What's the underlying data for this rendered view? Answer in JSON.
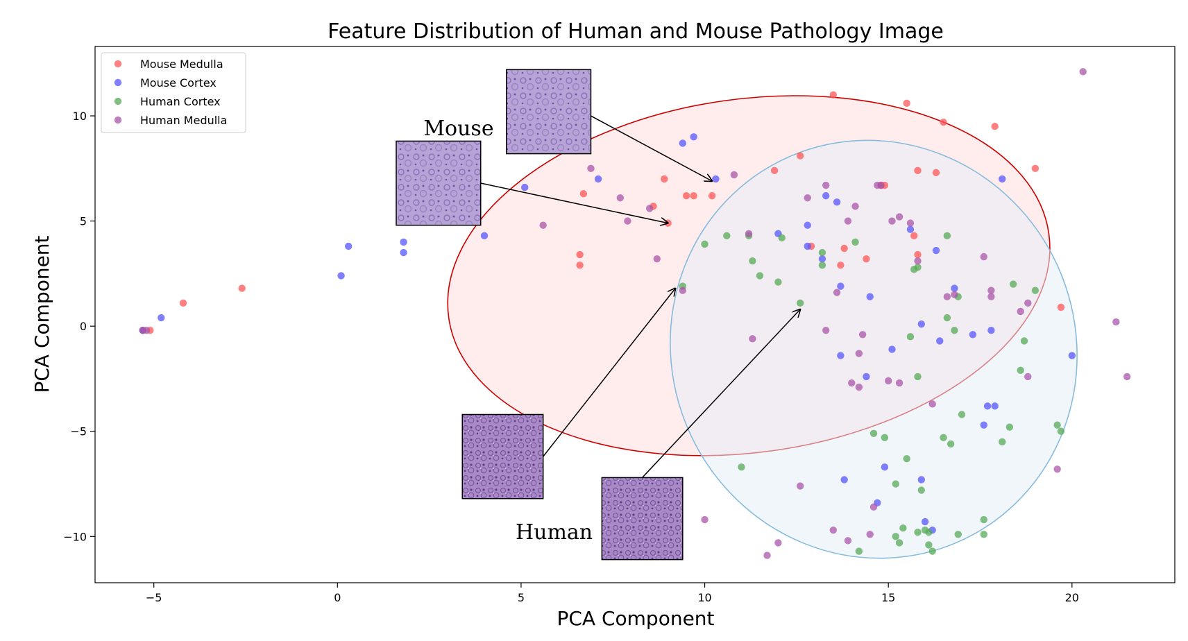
{
  "chart_data": {
    "type": "scatter",
    "title": "Feature Distribution of Human and Mouse Pathology Image",
    "xlabel": "PCA Component",
    "ylabel": "PCA Component",
    "xlim": [
      -6.6,
      22.8
    ],
    "ylim": [
      -12.2,
      13.3
    ],
    "xticks": [
      -5,
      0,
      5,
      10,
      15,
      20
    ],
    "yticks": [
      -10,
      -5,
      0,
      5,
      10
    ],
    "xtick_labels": [
      "−5",
      "0",
      "5",
      "10",
      "15",
      "20"
    ],
    "ytick_labels": [
      "−10",
      "−5",
      "0",
      "5",
      "10"
    ],
    "grid": false,
    "legend_position": "top-left",
    "series": [
      {
        "name": "Mouse Medulla",
        "color": "#ff5555",
        "points": [
          [
            -5.3,
            -0.2
          ],
          [
            -5.1,
            -0.2
          ],
          [
            -4.2,
            1.1
          ],
          [
            -2.6,
            1.8
          ],
          [
            6.6,
            3.4
          ],
          [
            6.6,
            2.9
          ],
          [
            6.7,
            6.3
          ],
          [
            8.6,
            5.7
          ],
          [
            8.9,
            7.0
          ],
          [
            9.0,
            4.9
          ],
          [
            9.5,
            6.2
          ],
          [
            9.7,
            6.2
          ],
          [
            10.2,
            6.2
          ],
          [
            11.9,
            7.4
          ],
          [
            12.6,
            8.1
          ],
          [
            12.9,
            3.8
          ],
          [
            13.5,
            11.0
          ],
          [
            13.7,
            2.9
          ],
          [
            13.8,
            3.7
          ],
          [
            14.4,
            3.2
          ],
          [
            14.8,
            6.7
          ],
          [
            14.9,
            6.7
          ],
          [
            15.5,
            10.6
          ],
          [
            15.7,
            4.3
          ],
          [
            15.8,
            3.4
          ],
          [
            15.8,
            7.4
          ],
          [
            16.3,
            7.3
          ],
          [
            16.5,
            9.7
          ],
          [
            17.9,
            9.5
          ],
          [
            19.0,
            7.5
          ],
          [
            19.7,
            0.9
          ]
        ]
      },
      {
        "name": "Mouse Cortex",
        "color": "#5555ff",
        "points": [
          [
            -5.3,
            -0.2
          ],
          [
            -4.8,
            0.4
          ],
          [
            0.1,
            2.4
          ],
          [
            0.3,
            3.8
          ],
          [
            1.8,
            4.0
          ],
          [
            1.8,
            3.5
          ],
          [
            4.0,
            4.3
          ],
          [
            5.1,
            6.6
          ],
          [
            7.1,
            7.0
          ],
          [
            9.4,
            8.7
          ],
          [
            9.7,
            9.0
          ],
          [
            10.3,
            7.0
          ],
          [
            12.0,
            4.4
          ],
          [
            12.8,
            4.8
          ],
          [
            12.8,
            3.8
          ],
          [
            13.2,
            3.2
          ],
          [
            13.3,
            6.2
          ],
          [
            13.6,
            5.9
          ],
          [
            13.7,
            1.9
          ],
          [
            13.7,
            -1.4
          ],
          [
            14.5,
            1.4
          ],
          [
            14.4,
            -2.4
          ],
          [
            14.9,
            -6.7
          ],
          [
            14.7,
            -8.4
          ],
          [
            15.1,
            -1.1
          ],
          [
            15.6,
            4.6
          ],
          [
            15.9,
            0.1
          ],
          [
            15.9,
            -7.3
          ],
          [
            16.0,
            -9.3
          ],
          [
            16.2,
            -9.7
          ],
          [
            16.3,
            3.6
          ],
          [
            16.4,
            -0.7
          ],
          [
            16.8,
            1.8
          ],
          [
            17.3,
            -0.4
          ],
          [
            17.6,
            -4.7
          ],
          [
            17.7,
            -3.8
          ],
          [
            17.8,
            -0.2
          ],
          [
            17.9,
            -3.8
          ],
          [
            18.1,
            7.0
          ],
          [
            20.0,
            -1.4
          ],
          [
            13.8,
            -7.3
          ]
        ]
      },
      {
        "name": "Human Cortex",
        "color": "#55aa55",
        "points": [
          [
            9.4,
            1.9
          ],
          [
            10.0,
            3.9
          ],
          [
            10.6,
            4.3
          ],
          [
            11.2,
            4.3
          ],
          [
            11.3,
            3.1
          ],
          [
            11.5,
            2.4
          ],
          [
            12.0,
            2.1
          ],
          [
            12.1,
            4.2
          ],
          [
            12.6,
            1.1
          ],
          [
            13.2,
            3.5
          ],
          [
            13.2,
            2.9
          ],
          [
            14.1,
            4.0
          ],
          [
            14.6,
            -5.1
          ],
          [
            14.9,
            -5.3
          ],
          [
            15.2,
            -7.5
          ],
          [
            15.5,
            -6.3
          ],
          [
            15.6,
            -0.5
          ],
          [
            15.7,
            2.7
          ],
          [
            15.8,
            2.8
          ],
          [
            15.8,
            -2.4
          ],
          [
            15.9,
            -7.8
          ],
          [
            16.6,
            0.4
          ],
          [
            16.6,
            4.3
          ],
          [
            16.7,
            -5.6
          ],
          [
            16.8,
            -0.2
          ],
          [
            16.9,
            1.4
          ],
          [
            17.0,
            -4.2
          ],
          [
            17.6,
            -9.2
          ],
          [
            18.1,
            -5.5
          ],
          [
            18.3,
            -4.8
          ],
          [
            18.4,
            2.0
          ],
          [
            18.6,
            -2.1
          ],
          [
            18.7,
            -0.7
          ],
          [
            19.0,
            1.7
          ],
          [
            19.6,
            -4.7
          ],
          [
            19.7,
            -5.0
          ],
          [
            15.2,
            -10.0
          ],
          [
            15.4,
            -9.6
          ],
          [
            15.8,
            -9.8
          ],
          [
            16.0,
            -9.7
          ],
          [
            16.1,
            -9.8
          ],
          [
            16.1,
            -10.4
          ],
          [
            16.2,
            -10.7
          ],
          [
            16.9,
            -9.9
          ],
          [
            17.6,
            -9.9
          ],
          [
            14.2,
            -10.7
          ],
          [
            15.3,
            -10.3
          ],
          [
            16.5,
            -5.3
          ],
          [
            11.0,
            -6.7
          ]
        ]
      },
      {
        "name": "Human Medulla",
        "color": "#aa55aa",
        "points": [
          [
            -5.3,
            -0.2
          ],
          [
            -5.2,
            -0.2
          ],
          [
            5.6,
            4.8
          ],
          [
            6.9,
            7.5
          ],
          [
            7.7,
            6.1
          ],
          [
            7.9,
            5.0
          ],
          [
            8.5,
            5.6
          ],
          [
            8.7,
            3.2
          ],
          [
            9.4,
            1.7
          ],
          [
            10.8,
            7.2
          ],
          [
            11.2,
            4.4
          ],
          [
            11.3,
            -0.6
          ],
          [
            12.8,
            6.1
          ],
          [
            13.3,
            6.7
          ],
          [
            13.6,
            1.6
          ],
          [
            13.3,
            -0.2
          ],
          [
            13.9,
            5.0
          ],
          [
            14.1,
            5.7
          ],
          [
            14.2,
            -1.3
          ],
          [
            14.0,
            -2.7
          ],
          [
            14.2,
            -2.9
          ],
          [
            14.3,
            -0.4
          ],
          [
            14.7,
            6.7
          ],
          [
            14.8,
            6.7
          ],
          [
            15.1,
            5.0
          ],
          [
            15.3,
            5.2
          ],
          [
            15.0,
            -2.6
          ],
          [
            15.3,
            -2.7
          ],
          [
            15.6,
            4.9
          ],
          [
            15.8,
            3.1
          ],
          [
            16.2,
            -3.7
          ],
          [
            16.6,
            1.4
          ],
          [
            16.8,
            1.5
          ],
          [
            17.6,
            3.3
          ],
          [
            17.8,
            1.7
          ],
          [
            17.8,
            1.4
          ],
          [
            18.6,
            0.7
          ],
          [
            18.8,
            1.1
          ],
          [
            18.8,
            -2.4
          ],
          [
            19.6,
            -6.8
          ],
          [
            20.3,
            12.1
          ],
          [
            21.2,
            0.2
          ],
          [
            21.5,
            -2.4
          ],
          [
            12.6,
            -7.6
          ],
          [
            14.6,
            -8.6
          ],
          [
            10.0,
            -9.2
          ],
          [
            11.7,
            -10.9
          ],
          [
            12.0,
            -10.3
          ],
          [
            13.5,
            -9.7
          ],
          [
            13.9,
            -10.2
          ],
          [
            14.5,
            -9.9
          ]
        ]
      }
    ],
    "regions": [
      {
        "name": "mouse-region",
        "center": [
          11.2,
          2.4
        ],
        "width": 16.5,
        "height": 16.8,
        "angle": 8,
        "fill": "#ffdddd",
        "edge": "#cc0000"
      },
      {
        "name": "human-region",
        "center": [
          14.6,
          -1.1
        ],
        "width": 11.0,
        "height": 20.0,
        "angle": 24,
        "fill": "#e6eef7",
        "edge": "#88bbdd"
      }
    ],
    "annotations": [
      {
        "text": "Mouse",
        "x": 3.3,
        "y": 9.4
      },
      {
        "text": "Human",
        "x": 5.9,
        "y": -9.8
      }
    ],
    "inset_arrows": [
      {
        "patch": [
          4.6,
          8.2,
          6.9,
          12.2
        ],
        "from": [
          6.9,
          10.0
        ],
        "to": [
          10.2,
          6.9
        ],
        "tone": "mouse"
      },
      {
        "patch": [
          1.6,
          4.8,
          3.9,
          8.8
        ],
        "from": [
          3.9,
          6.8
        ],
        "to": [
          9.0,
          4.9
        ],
        "tone": "mouse"
      },
      {
        "patch": [
          3.4,
          -8.2,
          5.6,
          -4.2
        ],
        "from": [
          5.6,
          -6.2
        ],
        "to": [
          9.2,
          1.8
        ],
        "tone": "human"
      },
      {
        "patch": [
          7.2,
          -11.1,
          9.4,
          -7.2
        ],
        "from": [
          8.3,
          -7.2
        ],
        "to": [
          12.6,
          0.8
        ],
        "tone": "human"
      }
    ]
  }
}
